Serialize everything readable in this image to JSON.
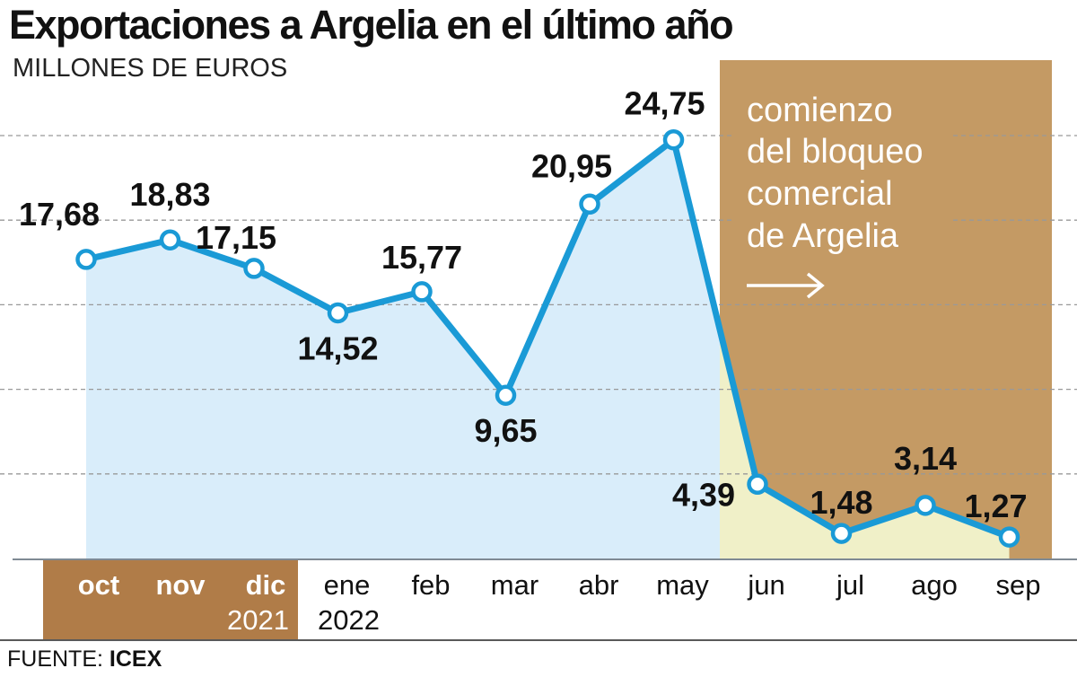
{
  "chart_data": {
    "type": "area",
    "title": "Exportaciones a Argelia en el último año",
    "ylabel": "MILLONES DE EUROS",
    "categories": [
      "oct",
      "nov",
      "dic",
      "ene",
      "feb",
      "mar",
      "abr",
      "may",
      "jun",
      "jul",
      "ago",
      "sep"
    ],
    "year_labels": [
      "2021",
      "2022"
    ],
    "values": [
      17.68,
      18.83,
      17.15,
      14.52,
      15.77,
      9.65,
      20.95,
      24.75,
      4.39,
      1.48,
      3.14,
      1.27
    ],
    "value_labels": [
      "17,68",
      "18,83",
      "17,15",
      "14,52",
      "15,77",
      "9,65",
      "20,95",
      "24,75",
      "4,39",
      "1,48",
      "3,14",
      "1,27"
    ],
    "ylim": [
      0,
      25
    ],
    "grid_values": [
      5,
      10,
      15,
      20,
      25
    ],
    "grid": true,
    "annotation": {
      "lines": [
        "comienzo",
        "del bloqueo",
        "comercial",
        "de Argelia"
      ],
      "arrow": "right-arrow",
      "starts_at": "jun"
    },
    "colors": {
      "line": "#1a9ad6",
      "area_before": "#d9edfa",
      "area_after": "#f0f0c8",
      "annotation_box": "#c49a64",
      "year_box_2021": "#b07c48"
    }
  },
  "source": {
    "label": "FUENTE:",
    "value": "ICEX"
  }
}
